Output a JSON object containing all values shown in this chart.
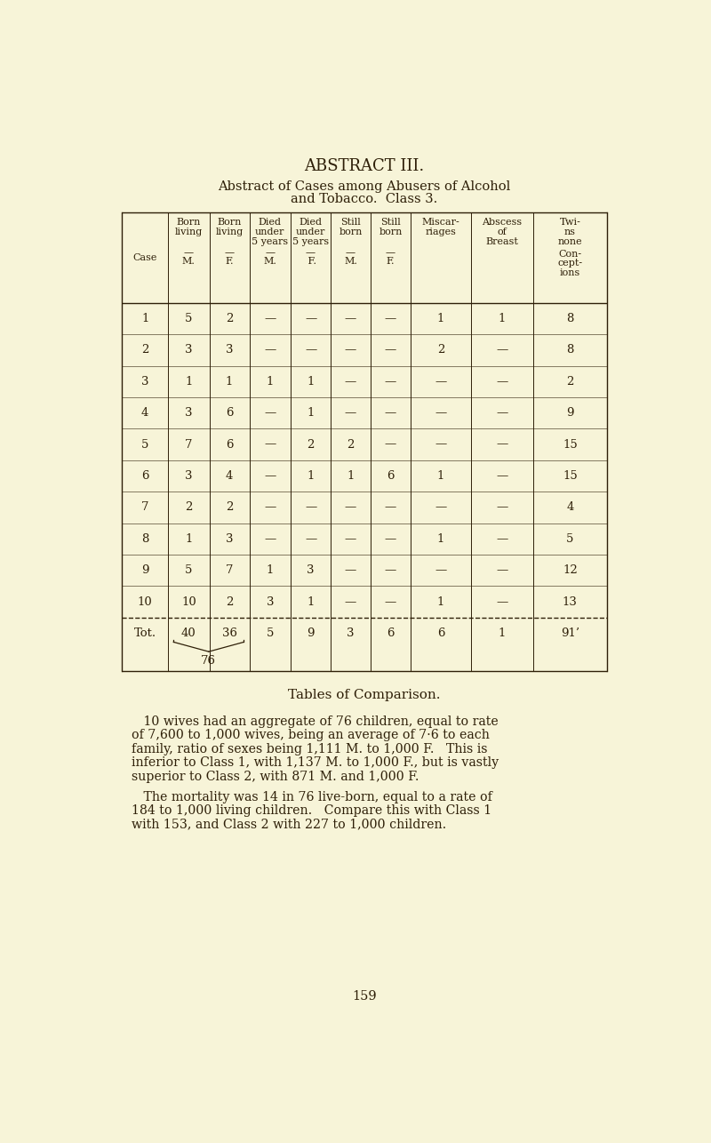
{
  "bg_color": "#f7f4d8",
  "text_color": "#2e1f08",
  "page_title": "ABSTRACT III.",
  "subtitle1": "Abstract of Cases among Abusers of Alcohol",
  "subtitle2": "and Tobacco.  Class 3.",
  "table_comparison_title": "Tables of Comparison.",
  "para1_indent": "10 wives had an aggregate of 76 children, equal to rate\nof 7,600 to 1,000 wives, being an average of 7·6 to each\nfamily, ratio of sexes being 1,111 M. to 1,000 F.   This is\ninferior to Class 1, with 1,137 M. to 1,000 F., but is vastly\nsuperior to Class 2, with 871 M. and 1,000 F.",
  "para2_indent": "   The mortality was 14 in 76 live-born, equal to a rate of\n184 to 1,000 living children.   Compare this with Class 1\nwith 153, and Class 2 with 227 to 1,000 children.",
  "page_number": "159",
  "rows": [
    [
      "1",
      "5",
      "2",
      "—",
      "—",
      "—",
      "—",
      "1",
      "1",
      "8"
    ],
    [
      "2",
      "3",
      "3",
      "—",
      "—",
      "—",
      "—",
      "2",
      "—",
      "8"
    ],
    [
      "3",
      "1",
      "1",
      "1",
      "1",
      "—",
      "—",
      "—",
      "—",
      "2"
    ],
    [
      "4",
      "3",
      "6",
      "—",
      "1",
      "—",
      "—",
      "—",
      "—",
      "9"
    ],
    [
      "5",
      "7",
      "6",
      "—",
      "2",
      "2",
      "—",
      "—",
      "—",
      "15"
    ],
    [
      "6",
      "3",
      "4",
      "—",
      "1",
      "1",
      "6",
      "1",
      "—",
      "15"
    ],
    [
      "7",
      "2",
      "2",
      "—",
      "—",
      "—",
      "—",
      "—",
      "—",
      "4"
    ],
    [
      "8",
      "1",
      "3",
      "—",
      "—",
      "—",
      "—",
      "1",
      "—",
      "5"
    ],
    [
      "9",
      "5",
      "7",
      "1",
      "3",
      "—",
      "—",
      "—",
      "—",
      "12"
    ],
    [
      "10",
      "10",
      "2",
      "3",
      "1",
      "—",
      "—",
      "1",
      "—",
      "13"
    ]
  ],
  "totals": [
    "Tot.",
    "40",
    "36",
    "5",
    "9",
    "3",
    "6",
    "6",
    "1",
    "91’"
  ],
  "totals_brace_label": "76"
}
